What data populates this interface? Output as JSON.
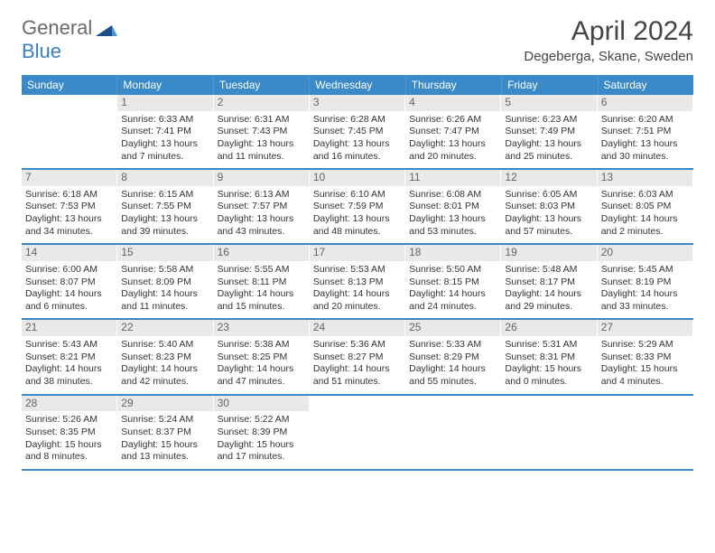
{
  "logo": {
    "text1": "General",
    "text2": "Blue"
  },
  "title": "April 2024",
  "location": "Degeberga, Skane, Sweden",
  "colors": {
    "header_bg": "#3a8ac9",
    "rule": "#3a8ac9",
    "daynum_bg": "#e9e9e9",
    "text": "#333333",
    "logo_accent": "#1d4e89"
  },
  "dow": [
    "Sunday",
    "Monday",
    "Tuesday",
    "Wednesday",
    "Thursday",
    "Friday",
    "Saturday"
  ],
  "weeks": [
    [
      {
        "n": "",
        "sr": "",
        "ss": "",
        "dl": ""
      },
      {
        "n": "1",
        "sr": "Sunrise: 6:33 AM",
        "ss": "Sunset: 7:41 PM",
        "dl": "Daylight: 13 hours and 7 minutes."
      },
      {
        "n": "2",
        "sr": "Sunrise: 6:31 AM",
        "ss": "Sunset: 7:43 PM",
        "dl": "Daylight: 13 hours and 11 minutes."
      },
      {
        "n": "3",
        "sr": "Sunrise: 6:28 AM",
        "ss": "Sunset: 7:45 PM",
        "dl": "Daylight: 13 hours and 16 minutes."
      },
      {
        "n": "4",
        "sr": "Sunrise: 6:26 AM",
        "ss": "Sunset: 7:47 PM",
        "dl": "Daylight: 13 hours and 20 minutes."
      },
      {
        "n": "5",
        "sr": "Sunrise: 6:23 AM",
        "ss": "Sunset: 7:49 PM",
        "dl": "Daylight: 13 hours and 25 minutes."
      },
      {
        "n": "6",
        "sr": "Sunrise: 6:20 AM",
        "ss": "Sunset: 7:51 PM",
        "dl": "Daylight: 13 hours and 30 minutes."
      }
    ],
    [
      {
        "n": "7",
        "sr": "Sunrise: 6:18 AM",
        "ss": "Sunset: 7:53 PM",
        "dl": "Daylight: 13 hours and 34 minutes."
      },
      {
        "n": "8",
        "sr": "Sunrise: 6:15 AM",
        "ss": "Sunset: 7:55 PM",
        "dl": "Daylight: 13 hours and 39 minutes."
      },
      {
        "n": "9",
        "sr": "Sunrise: 6:13 AM",
        "ss": "Sunset: 7:57 PM",
        "dl": "Daylight: 13 hours and 43 minutes."
      },
      {
        "n": "10",
        "sr": "Sunrise: 6:10 AM",
        "ss": "Sunset: 7:59 PM",
        "dl": "Daylight: 13 hours and 48 minutes."
      },
      {
        "n": "11",
        "sr": "Sunrise: 6:08 AM",
        "ss": "Sunset: 8:01 PM",
        "dl": "Daylight: 13 hours and 53 minutes."
      },
      {
        "n": "12",
        "sr": "Sunrise: 6:05 AM",
        "ss": "Sunset: 8:03 PM",
        "dl": "Daylight: 13 hours and 57 minutes."
      },
      {
        "n": "13",
        "sr": "Sunrise: 6:03 AM",
        "ss": "Sunset: 8:05 PM",
        "dl": "Daylight: 14 hours and 2 minutes."
      }
    ],
    [
      {
        "n": "14",
        "sr": "Sunrise: 6:00 AM",
        "ss": "Sunset: 8:07 PM",
        "dl": "Daylight: 14 hours and 6 minutes."
      },
      {
        "n": "15",
        "sr": "Sunrise: 5:58 AM",
        "ss": "Sunset: 8:09 PM",
        "dl": "Daylight: 14 hours and 11 minutes."
      },
      {
        "n": "16",
        "sr": "Sunrise: 5:55 AM",
        "ss": "Sunset: 8:11 PM",
        "dl": "Daylight: 14 hours and 15 minutes."
      },
      {
        "n": "17",
        "sr": "Sunrise: 5:53 AM",
        "ss": "Sunset: 8:13 PM",
        "dl": "Daylight: 14 hours and 20 minutes."
      },
      {
        "n": "18",
        "sr": "Sunrise: 5:50 AM",
        "ss": "Sunset: 8:15 PM",
        "dl": "Daylight: 14 hours and 24 minutes."
      },
      {
        "n": "19",
        "sr": "Sunrise: 5:48 AM",
        "ss": "Sunset: 8:17 PM",
        "dl": "Daylight: 14 hours and 29 minutes."
      },
      {
        "n": "20",
        "sr": "Sunrise: 5:45 AM",
        "ss": "Sunset: 8:19 PM",
        "dl": "Daylight: 14 hours and 33 minutes."
      }
    ],
    [
      {
        "n": "21",
        "sr": "Sunrise: 5:43 AM",
        "ss": "Sunset: 8:21 PM",
        "dl": "Daylight: 14 hours and 38 minutes."
      },
      {
        "n": "22",
        "sr": "Sunrise: 5:40 AM",
        "ss": "Sunset: 8:23 PM",
        "dl": "Daylight: 14 hours and 42 minutes."
      },
      {
        "n": "23",
        "sr": "Sunrise: 5:38 AM",
        "ss": "Sunset: 8:25 PM",
        "dl": "Daylight: 14 hours and 47 minutes."
      },
      {
        "n": "24",
        "sr": "Sunrise: 5:36 AM",
        "ss": "Sunset: 8:27 PM",
        "dl": "Daylight: 14 hours and 51 minutes."
      },
      {
        "n": "25",
        "sr": "Sunrise: 5:33 AM",
        "ss": "Sunset: 8:29 PM",
        "dl": "Daylight: 14 hours and 55 minutes."
      },
      {
        "n": "26",
        "sr": "Sunrise: 5:31 AM",
        "ss": "Sunset: 8:31 PM",
        "dl": "Daylight: 15 hours and 0 minutes."
      },
      {
        "n": "27",
        "sr": "Sunrise: 5:29 AM",
        "ss": "Sunset: 8:33 PM",
        "dl": "Daylight: 15 hours and 4 minutes."
      }
    ],
    [
      {
        "n": "28",
        "sr": "Sunrise: 5:26 AM",
        "ss": "Sunset: 8:35 PM",
        "dl": "Daylight: 15 hours and 8 minutes."
      },
      {
        "n": "29",
        "sr": "Sunrise: 5:24 AM",
        "ss": "Sunset: 8:37 PM",
        "dl": "Daylight: 15 hours and 13 minutes."
      },
      {
        "n": "30",
        "sr": "Sunrise: 5:22 AM",
        "ss": "Sunset: 8:39 PM",
        "dl": "Daylight: 15 hours and 17 minutes."
      },
      {
        "n": "",
        "sr": "",
        "ss": "",
        "dl": ""
      },
      {
        "n": "",
        "sr": "",
        "ss": "",
        "dl": ""
      },
      {
        "n": "",
        "sr": "",
        "ss": "",
        "dl": ""
      },
      {
        "n": "",
        "sr": "",
        "ss": "",
        "dl": ""
      }
    ]
  ]
}
